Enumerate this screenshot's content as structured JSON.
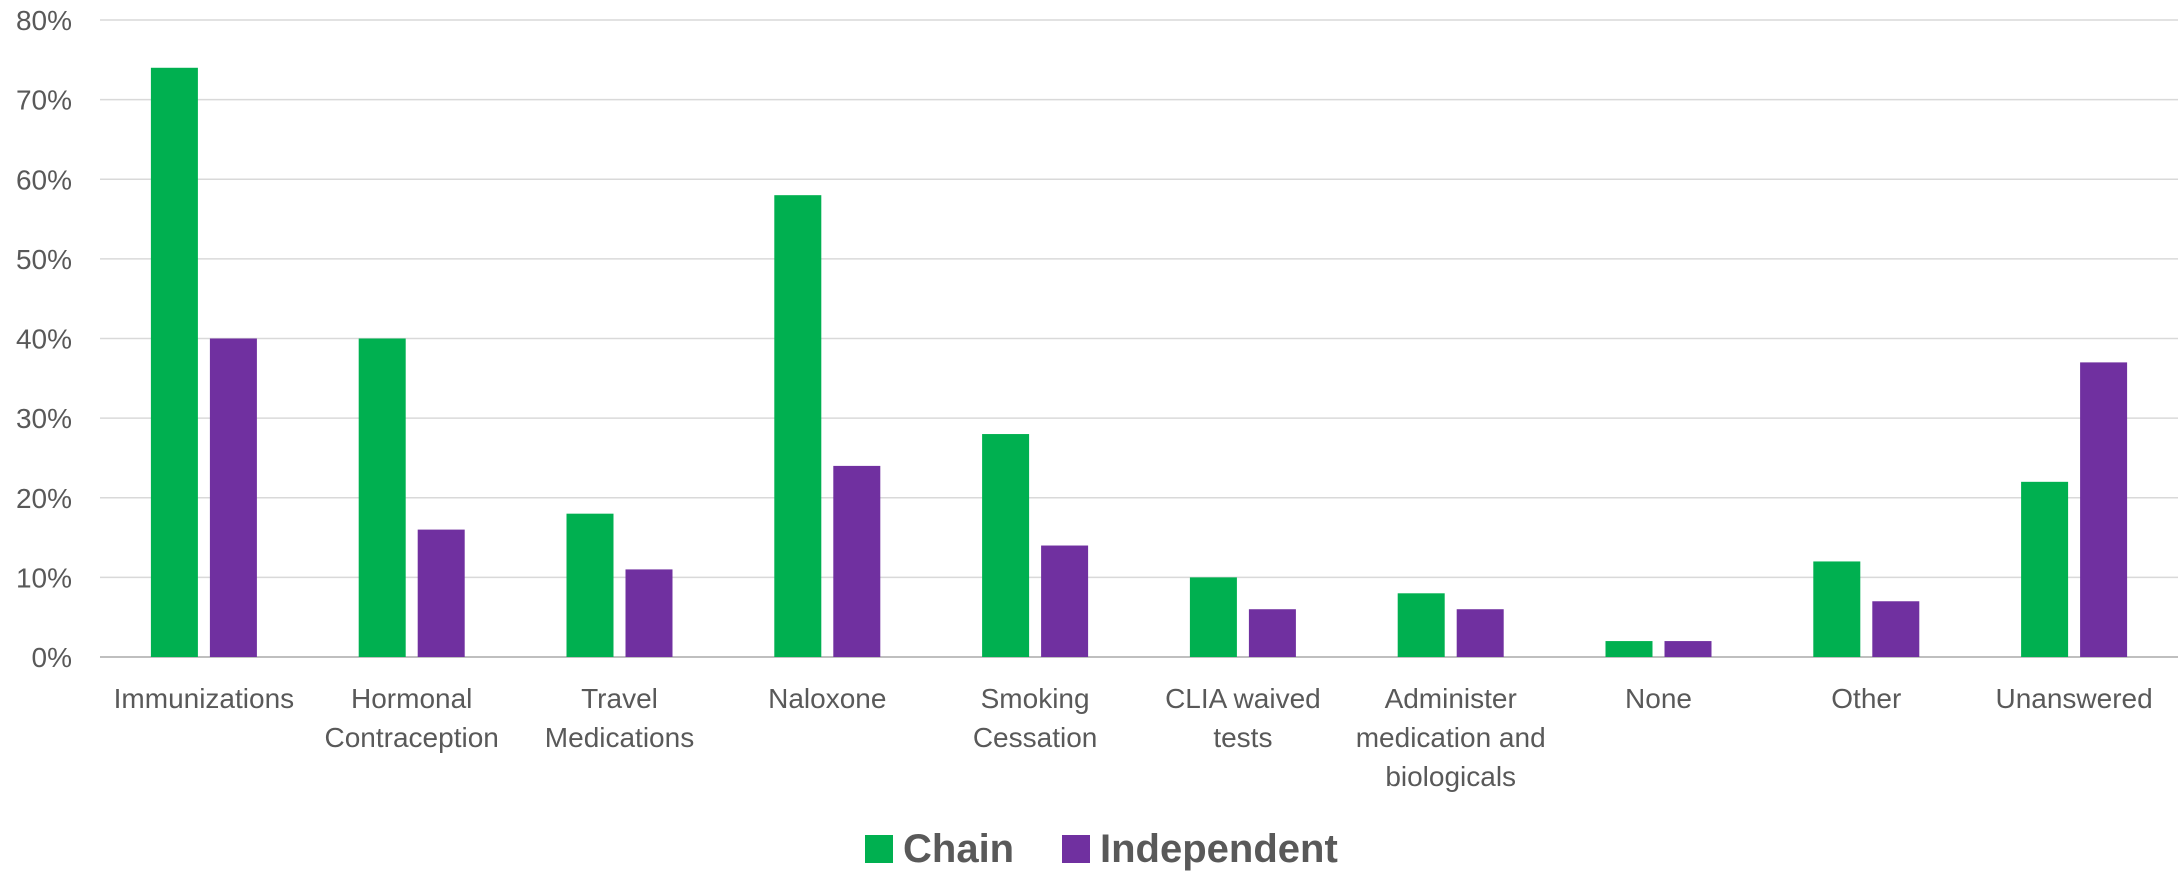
{
  "chart_data": {
    "type": "bar",
    "categories": [
      [
        "Immunizations"
      ],
      [
        "Hormonal",
        "Contraception"
      ],
      [
        "Travel",
        "Medications"
      ],
      [
        "Naloxone"
      ],
      [
        "Smoking",
        "Cessation"
      ],
      [
        "CLIA waived",
        "tests"
      ],
      [
        "Administer",
        "medication and",
        "biologicals"
      ],
      [
        "None"
      ],
      [
        "Other"
      ],
      [
        "Unanswered"
      ]
    ],
    "series": [
      {
        "name": "Chain",
        "color": "#00b050",
        "values": [
          74,
          40,
          18,
          58,
          28,
          10,
          8,
          2,
          12,
          22
        ]
      },
      {
        "name": "Independent",
        "color": "#7030a0",
        "values": [
          40,
          16,
          11,
          24,
          14,
          6,
          6,
          2,
          7,
          37
        ]
      }
    ],
    "ylim": [
      0,
      80
    ],
    "yticks": [
      "0%",
      "10%",
      "20%",
      "30%",
      "40%",
      "50%",
      "60%",
      "70%",
      "80%"
    ],
    "grid": true,
    "legend_position": "bottom"
  }
}
